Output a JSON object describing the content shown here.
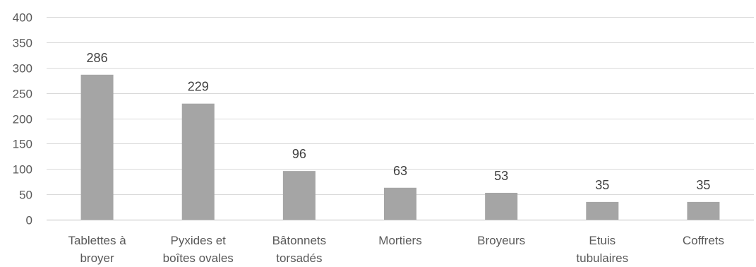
{
  "chart_data": {
    "type": "bar",
    "categories": [
      [
        "Tablettes à",
        "broyer"
      ],
      [
        "Pyxides et",
        "boîtes ovales"
      ],
      [
        "Bâtonnets",
        "torsadés"
      ],
      [
        "Mortiers"
      ],
      [
        "Broyeurs"
      ],
      [
        "Etuis",
        "tubulaires"
      ],
      [
        "Coffrets"
      ]
    ],
    "values": [
      286,
      229,
      96,
      63,
      53,
      35,
      35
    ],
    "title": "",
    "xlabel": "",
    "ylabel": "",
    "ylim": [
      0,
      400
    ],
    "yticks": [
      0,
      50,
      100,
      150,
      200,
      250,
      300,
      350,
      400
    ],
    "grid": true,
    "legend": "none",
    "bar_color": "#a5a5a5",
    "data_labels": true
  }
}
